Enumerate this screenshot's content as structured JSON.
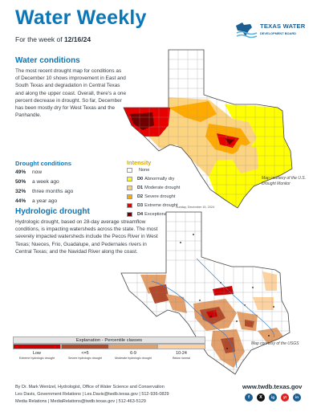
{
  "header": {
    "title": "Water Weekly",
    "week_prefix": "For the week of ",
    "week_date": "12/16/24",
    "logo_line1": "TEXAS WATER",
    "logo_line2": "DEVELOPMENT BOARD"
  },
  "water_conditions": {
    "heading": "Water conditions",
    "body": "The most recent drought map for conditions as of December 10 shows improvement in East and South Texas and degradation in Central Texas and along the upper coast. Overall, there's a one percent decrease in drought. So far, December has been mostly dry for West Texas and the Panhandle.",
    "stats_heading": "Drought conditions",
    "stats": [
      {
        "value": "49%",
        "label": "now"
      },
      {
        "value": "50%",
        "label": "a week ago"
      },
      {
        "value": "32%",
        "label": "three months ago"
      },
      {
        "value": "44%",
        "label": "a year ago"
      }
    ],
    "legend_title": "Intensity",
    "legend": [
      {
        "code": "",
        "label": "None",
        "color": "#ffffff"
      },
      {
        "code": "D0",
        "label": "Abnormally dry",
        "color": "#ffff00"
      },
      {
        "code": "D1",
        "label": "Moderate drought",
        "color": "#fcd37f"
      },
      {
        "code": "D2",
        "label": "Severe drought",
        "color": "#ffaa00"
      },
      {
        "code": "D3",
        "label": "Extreme drought",
        "color": "#e60000"
      },
      {
        "code": "D4",
        "label": "Exceptional drought",
        "color": "#730000"
      }
    ],
    "credit": "Map courtesy of the U.S. Drought Monitor"
  },
  "hydrologic": {
    "heading": "Hydrologic drought",
    "body": "Hydrologic drought, based on 28-day average streamflow conditions, is impacting watersheds across the state. The most severely impacted watersheds include the Pecos River in West Texas; Nueces, Frio, Guadalupe, and Pedernales rivers in Central Texas; and the Navidad River along the coast.",
    "map_date": "Sunday, December 15, 2024",
    "credit": "Map courtesy of the USGS",
    "explanation_title": "Explanation - Percentile classes",
    "classes": [
      {
        "label": "Low",
        "desc": "Extreme hydrologic drought",
        "color": "#cc0000"
      },
      {
        "label": "<=5",
        "desc": "Severe hydrologic drought",
        "color": "#b2492a"
      },
      {
        "label": "6-9",
        "desc": "Moderate hydrologic drought",
        "color": "#e3a06b"
      },
      {
        "label": "10-24",
        "desc": "Below normal",
        "color": "#fbd2a0"
      }
    ]
  },
  "footer": {
    "line1": "By Dr. Mark Wentzel, Hydrologist, Office of Water Science and Conservation",
    "line2": "Les Davis, Government Relations | Les.Davis@twdb.texas.gov | 512-936-0829",
    "line3": "Media Relations | MediaRelations@twdb.texas.gov | 512-463-5129",
    "url": "www.twdb.texas.gov",
    "social": [
      "f",
      "X",
      "ig",
      "yt",
      "in"
    ]
  }
}
